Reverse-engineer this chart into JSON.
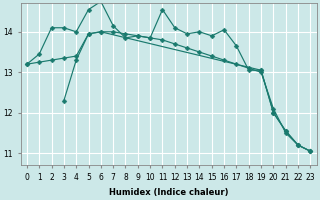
{
  "xlabel": "Humidex (Indice chaleur)",
  "bg_color": "#cce8e8",
  "grid_color": "#ffffff",
  "line_color": "#1a7a6e",
  "xlim": [
    -0.5,
    23.5
  ],
  "ylim": [
    10.7,
    14.7
  ],
  "yticks": [
    11,
    12,
    13,
    14
  ],
  "xticks": [
    0,
    1,
    2,
    3,
    4,
    5,
    6,
    7,
    8,
    9,
    10,
    11,
    12,
    13,
    14,
    15,
    16,
    17,
    18,
    19,
    20,
    21,
    22,
    23
  ],
  "line1_x": [
    0,
    1,
    2,
    3,
    4,
    5,
    6,
    7,
    8,
    9,
    10,
    11,
    12,
    13,
    14,
    15,
    16,
    17,
    18,
    19,
    20,
    21,
    22,
    23
  ],
  "line1_y": [
    13.2,
    13.45,
    14.1,
    14.1,
    14.0,
    14.55,
    14.75,
    14.15,
    13.85,
    13.9,
    13.85,
    14.55,
    14.1,
    13.95,
    14.0,
    13.9,
    14.05,
    13.65,
    13.05,
    13.05,
    12.0,
    11.55,
    11.2,
    11.05
  ],
  "line2_x": [
    0,
    1,
    2,
    3,
    4,
    5,
    6,
    7,
    8,
    9,
    10,
    11,
    12,
    13,
    14,
    15,
    16,
    17,
    18,
    19,
    20,
    21,
    22,
    23
  ],
  "line2_y": [
    13.2,
    13.25,
    13.3,
    13.35,
    13.4,
    13.95,
    14.0,
    14.0,
    13.95,
    13.9,
    13.85,
    13.8,
    13.7,
    13.6,
    13.5,
    13.4,
    13.3,
    13.2,
    13.1,
    13.0,
    12.1,
    11.5,
    11.2,
    11.05
  ],
  "line3_x": [
    3,
    4,
    5,
    6,
    19,
    20,
    21,
    22,
    23
  ],
  "line3_y": [
    12.3,
    13.3,
    13.95,
    14.0,
    13.05,
    12.0,
    11.55,
    11.2,
    11.05
  ]
}
